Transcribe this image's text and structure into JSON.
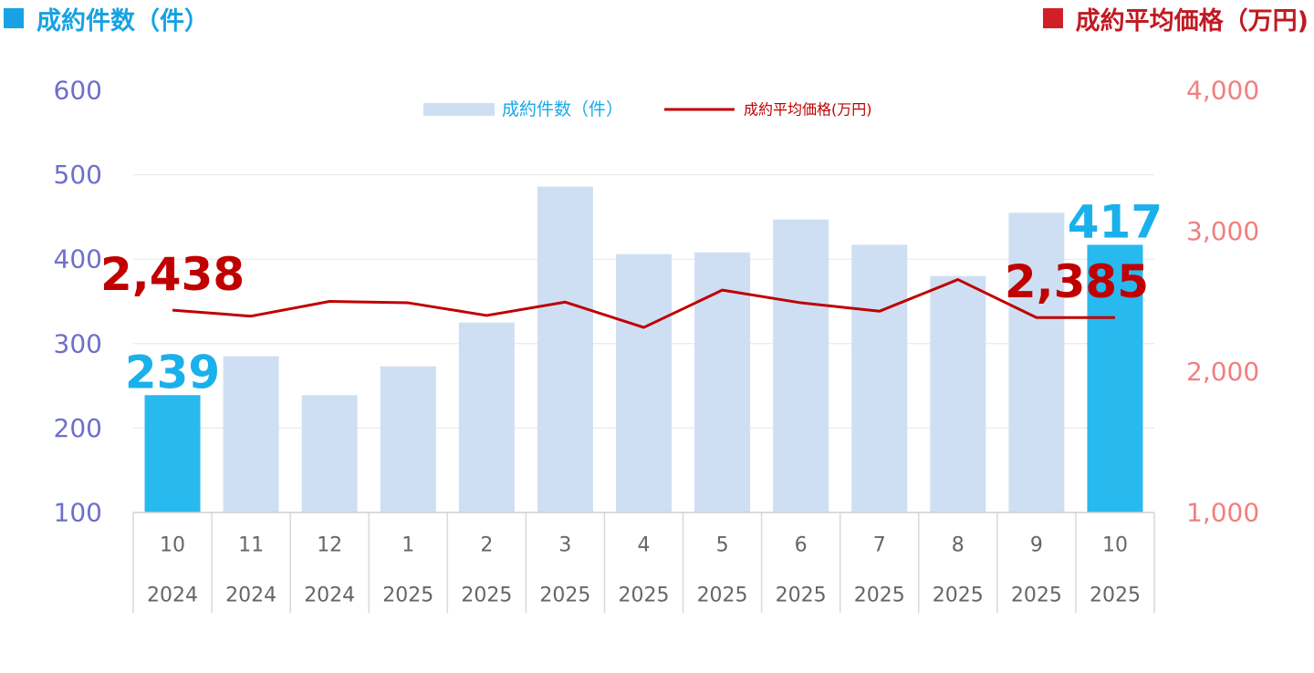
{
  "header": {
    "left_title": "成約件数（件）",
    "right_title": "成約平均価格（万円)"
  },
  "colors": {
    "bar": "#cfdff3",
    "bar_highlight": "#28b9ef",
    "line": "#c00000",
    "left_axis": "#6f6fcc",
    "right_axis": "#f08080",
    "count_label": "#1ab0ec",
    "price_label": "#c00000",
    "grid": "#e6e6e6"
  },
  "chart_data": {
    "type": "bar",
    "categories": [
      {
        "month": "10",
        "year": "2024"
      },
      {
        "month": "11",
        "year": "2024"
      },
      {
        "month": "12",
        "year": "2024"
      },
      {
        "month": "1",
        "year": "2025"
      },
      {
        "month": "2",
        "year": "2025"
      },
      {
        "month": "3",
        "year": "2025"
      },
      {
        "month": "4",
        "year": "2025"
      },
      {
        "month": "5",
        "year": "2025"
      },
      {
        "month": "6",
        "year": "2025"
      },
      {
        "month": "7",
        "year": "2025"
      },
      {
        "month": "8",
        "year": "2025"
      },
      {
        "month": "9",
        "year": "2025"
      },
      {
        "month": "10",
        "year": "2025"
      }
    ],
    "series": [
      {
        "name": "成約件数（件）",
        "type": "bar",
        "axis": "left",
        "values": [
          239,
          285,
          239,
          273,
          325,
          486,
          406,
          408,
          447,
          417,
          380,
          455,
          417
        ],
        "highlighted": [
          0,
          12
        ]
      },
      {
        "name": "成約平均価格(万円)",
        "type": "line",
        "axis": "right",
        "values": [
          2438,
          2395,
          2500,
          2490,
          2400,
          2495,
          2315,
          2580,
          2490,
          2430,
          2655,
          2385,
          2385
        ]
      }
    ],
    "y_left": {
      "min": 100,
      "max": 600,
      "ticks": [
        "100",
        "200",
        "300",
        "400",
        "500",
        "600"
      ]
    },
    "y_right": {
      "min": 1000,
      "max": 4000,
      "ticks": [
        "1,000",
        "2,000",
        "3,000",
        "4,000"
      ]
    },
    "grid": true,
    "legend": "top-center",
    "data_labels": [
      {
        "series": 0,
        "index": 0,
        "text": "239"
      },
      {
        "series": 0,
        "index": 12,
        "text": "417"
      },
      {
        "series": 1,
        "index": 0,
        "text": "2,438"
      },
      {
        "series": 1,
        "index": 12,
        "text": "2,385"
      }
    ]
  }
}
